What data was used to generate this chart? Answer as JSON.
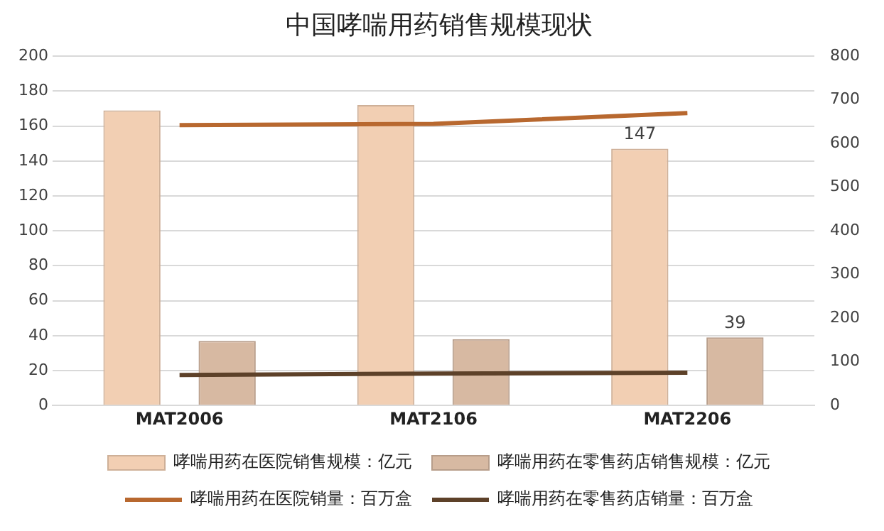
{
  "chart_data": {
    "type": "bar",
    "title": "中国哮喘用药销售规模现状",
    "categories": [
      "MAT2006",
      "MAT2106",
      "MAT2206"
    ],
    "series": [
      {
        "name": "哮喘用药在医院销售规模：亿元",
        "color": "#f2cfb3",
        "values": [
          169,
          172,
          147
        ],
        "value_labels": [
          null,
          null,
          "147"
        ]
      },
      {
        "name": "哮喘用药在零售药店销售规模：亿元",
        "color": "#d7b9a2",
        "values": [
          37,
          38,
          39
        ],
        "value_labels": [
          null,
          null,
          "39"
        ]
      },
      {
        "name": "哮喘用药在医院销量：百万盒",
        "type": "line",
        "axis": "y2",
        "color": "#b8682f",
        "values": [
          642,
          645,
          670
        ]
      },
      {
        "name": "哮喘用药在零售药店销量：百万盒",
        "type": "line",
        "axis": "y2",
        "color": "#5d4129",
        "values": [
          70,
          73,
          75
        ]
      }
    ],
    "ylim": [
      0,
      200
    ],
    "yticks": [
      0,
      20,
      40,
      60,
      80,
      100,
      120,
      140,
      160,
      180,
      200
    ],
    "y2lim": [
      0,
      800
    ],
    "y2ticks": [
      0,
      100,
      200,
      300,
      400,
      500,
      600,
      700,
      800
    ],
    "grid": "y",
    "legend": "bottom",
    "marker": "none"
  }
}
